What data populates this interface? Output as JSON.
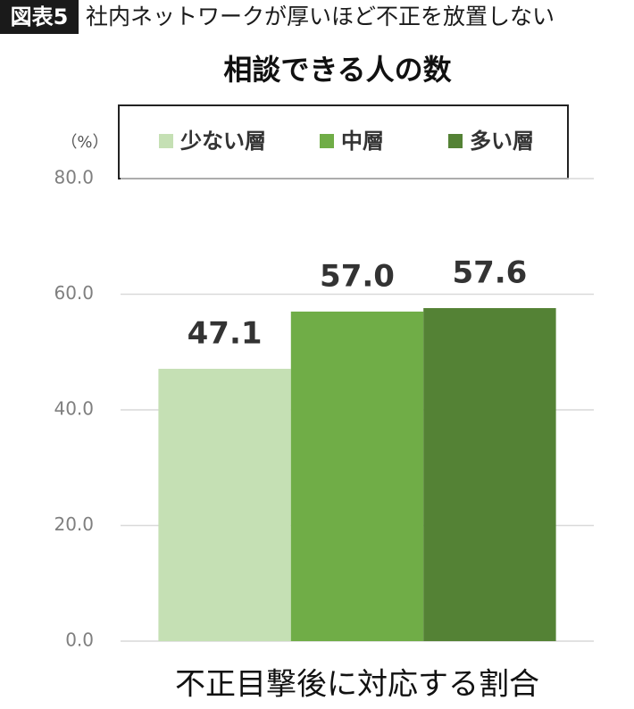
{
  "chart_data": {
    "type": "bar",
    "figure_label": "図表5",
    "title": "社内ネットワークが厚いほど不正を放置しない",
    "subtitle": "相談できる人の数",
    "y_unit": "（%）",
    "categories": [
      "不正目撃後に対応する割合"
    ],
    "series": [
      {
        "name": "少ない層",
        "color": "#c5e0b4",
        "values": [
          47.1
        ],
        "value_labels": [
          "47.1"
        ]
      },
      {
        "name": "中層",
        "color": "#70ad47",
        "values": [
          57.0
        ],
        "value_labels": [
          "57.0"
        ]
      },
      {
        "name": "多い層",
        "color": "#548235",
        "values": [
          57.6
        ],
        "value_labels": [
          "57.6"
        ]
      }
    ],
    "ylim": [
      0,
      80
    ],
    "yticks": [
      {
        "value": 0,
        "label": "0.0"
      },
      {
        "value": 20,
        "label": "20.0"
      },
      {
        "value": 40,
        "label": "40.0"
      },
      {
        "value": 60,
        "label": "60.0"
      },
      {
        "value": 80,
        "label": "80.0"
      }
    ],
    "grid": true,
    "legend": "top"
  }
}
